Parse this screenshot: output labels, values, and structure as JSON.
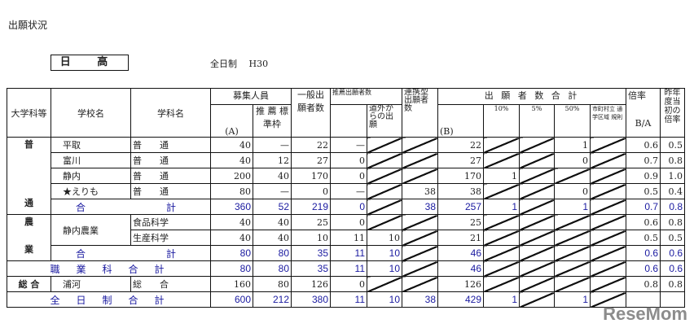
{
  "title": "出願状況",
  "region": "日 高",
  "system": "全日制　 H30",
  "headers": {
    "category": "大学科等",
    "school": "学校名",
    "dept": "学科名",
    "capacity": "募集人員",
    "cap_a": "(A)",
    "rec_quota": "推 薦 標準枠",
    "general": "一般出 願者数",
    "rec_applicants": "推薦出願者数",
    "outside": "道外か らの出 願",
    "linked": "連携型 出願者 数",
    "total": "出 願 者 数 合 計",
    "total_b": "(B)",
    "p10": "10%",
    "p5": "5%",
    "p50": "50%",
    "municipal": "市町村立 通学区域 規則",
    "ratio": "倍率",
    "ratio_ba": "B/A",
    "last_year": "昨年 度当 初の 倍率"
  },
  "rows": [
    {
      "cat": "普",
      "school": "平取",
      "dept": "普　　通",
      "v": [
        "40",
        "—",
        "22",
        "—",
        null,
        null,
        "22",
        null,
        null,
        "1",
        null,
        "0.6",
        "0.5"
      ]
    },
    {
      "school": "富川",
      "dept": "普　　通",
      "v": [
        "40",
        "12",
        "27",
        "0",
        null,
        null,
        "27",
        null,
        null,
        "0",
        null,
        "0.7",
        "0.8"
      ]
    },
    {
      "school": "静内",
      "dept": "普　　通",
      "v": [
        "200",
        "40",
        "170",
        "0",
        null,
        null,
        "170",
        "1",
        null,
        null,
        null,
        "0.9",
        "1.0"
      ]
    },
    {
      "school": "★えりも",
      "dept": "普　　通",
      "v": [
        "80",
        "—",
        "0",
        "—",
        null,
        "38",
        "38",
        null,
        null,
        "0",
        null,
        "0.5",
        "0.4"
      ]
    },
    {
      "cat": "通",
      "total_label": [
        "合",
        "計"
      ],
      "v": [
        "360",
        "52",
        "219",
        "0",
        null,
        "38",
        "257",
        "1",
        null,
        "1",
        null,
        "0.7",
        "0.8"
      ]
    },
    {
      "cat": "農",
      "school": "静内農業",
      "dept": "食品科学",
      "v": [
        "40",
        "40",
        "25",
        "0",
        null,
        null,
        "25",
        null,
        null,
        null,
        null,
        "0.6",
        "0.8"
      ]
    },
    {
      "dept": "生産科学",
      "v": [
        "40",
        "40",
        "10",
        "11",
        "10",
        null,
        "21",
        null,
        null,
        null,
        null,
        "0.5",
        "0.5"
      ]
    },
    {
      "cat": "業",
      "total_label": [
        "合",
        "計"
      ],
      "v": [
        "80",
        "80",
        "35",
        "11",
        "10",
        null,
        "46",
        null,
        null,
        null,
        null,
        "0.6",
        "0.6"
      ]
    },
    {
      "wide_label": "職　業　科　合　計",
      "v": [
        "80",
        "80",
        "35",
        "11",
        "10",
        null,
        "46",
        null,
        null,
        null,
        null,
        "0.6",
        "0.6"
      ]
    },
    {
      "cat": "総 合",
      "school": "浦河",
      "dept": "総　　合",
      "v": [
        "160",
        "80",
        "126",
        "0",
        null,
        null,
        "126",
        null,
        null,
        null,
        null,
        "0.8",
        "0.8"
      ]
    },
    {
      "wide_label": "全　日　制　合　計",
      "v": [
        "600",
        "212",
        "380",
        "11",
        "10",
        "38",
        "429",
        "1",
        null,
        "1",
        null,
        "",
        ""
      ]
    }
  ],
  "watermark": "ReseMom"
}
